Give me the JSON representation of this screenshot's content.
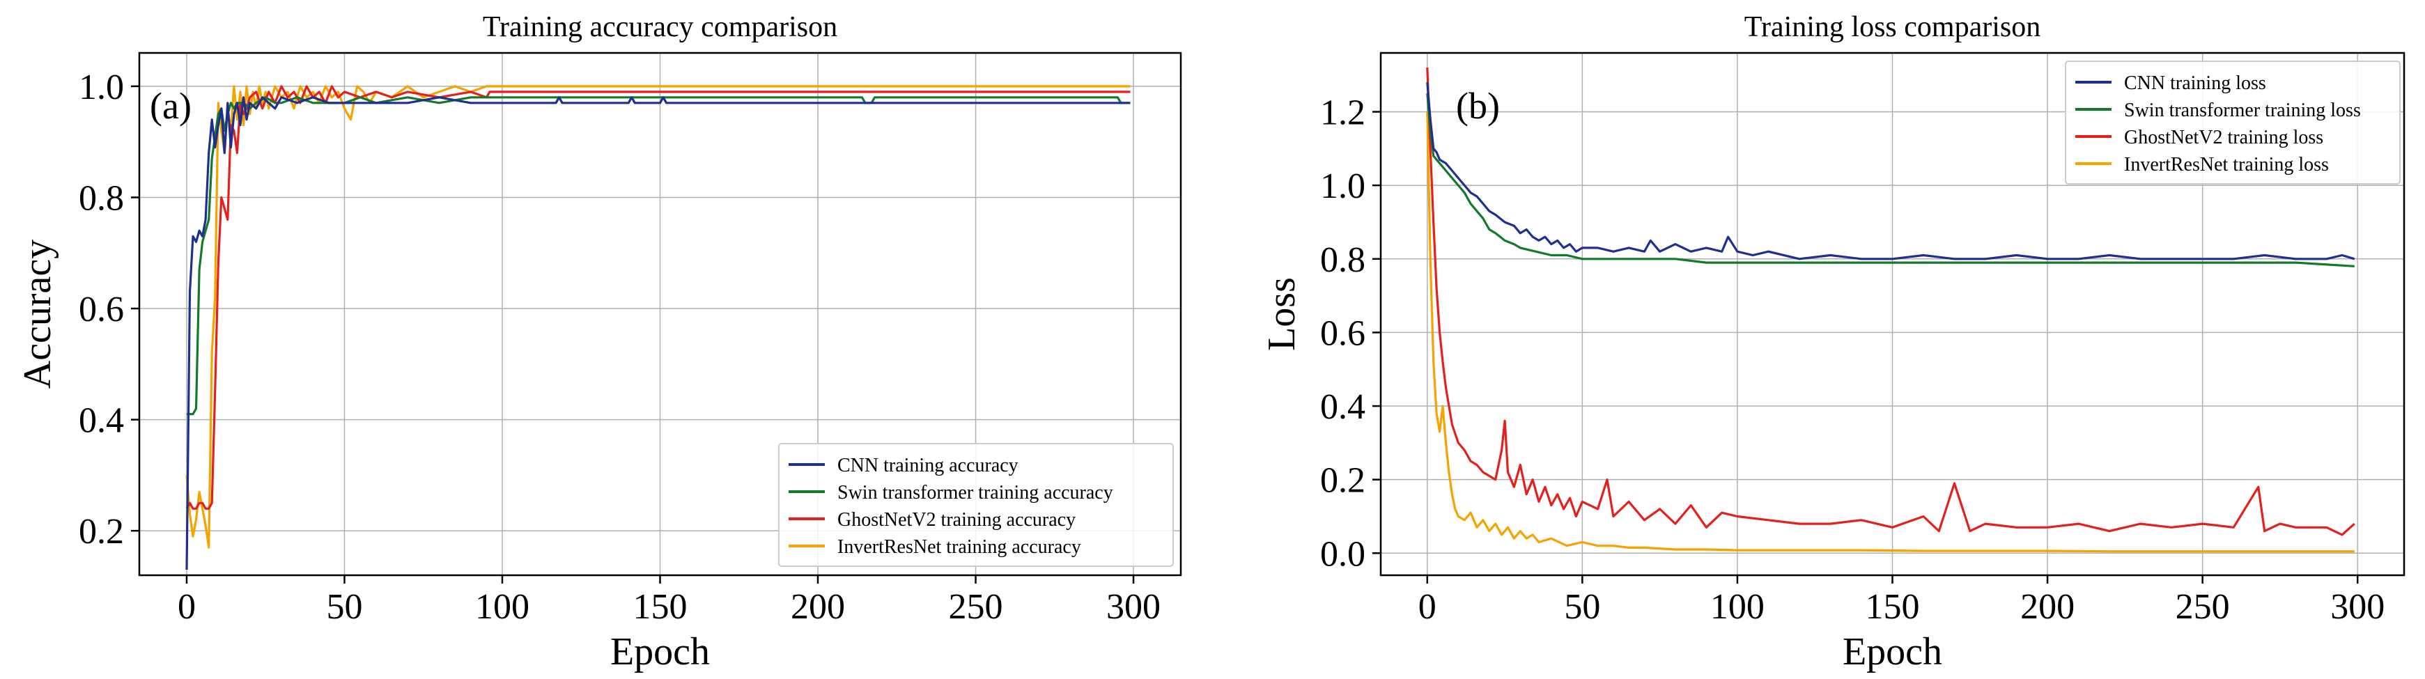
{
  "chart_data": [
    {
      "type": "line",
      "panel_label": "(a)",
      "title": "Training accuracy comparison",
      "xlabel": "Epoch",
      "ylabel": "Accuracy",
      "xlim": [
        -15,
        315
      ],
      "ylim": [
        0.12,
        1.06
      ],
      "xticks": [
        0,
        50,
        100,
        150,
        200,
        250,
        300
      ],
      "yticks": [
        0.2,
        0.4,
        0.6,
        0.8,
        1.0
      ],
      "ytick_format": 1,
      "grid": true,
      "legend_position": "bottom-right",
      "series": [
        {
          "name": "CNN training accuracy",
          "color": "#1f2f8f",
          "x": [
            0,
            1,
            2,
            3,
            4,
            5,
            6,
            7,
            8,
            9,
            10,
            11,
            12,
            13,
            14,
            15,
            16,
            17,
            18,
            19,
            20,
            22,
            24,
            26,
            28,
            30,
            35,
            40,
            45,
            50,
            55,
            60,
            70,
            80,
            90,
            100,
            110,
            117,
            118,
            119,
            130,
            140,
            141,
            142,
            150,
            151,
            152,
            160,
            200,
            250,
            299
          ],
          "y": [
            0.13,
            0.63,
            0.73,
            0.72,
            0.74,
            0.73,
            0.76,
            0.88,
            0.94,
            0.89,
            0.93,
            0.96,
            0.88,
            0.97,
            0.89,
            0.95,
            0.97,
            0.93,
            0.98,
            0.94,
            0.97,
            0.96,
            0.98,
            0.97,
            0.96,
            0.98,
            0.97,
            0.98,
            0.97,
            0.97,
            0.97,
            0.97,
            0.97,
            0.98,
            0.97,
            0.97,
            0.97,
            0.97,
            0.98,
            0.97,
            0.97,
            0.97,
            0.98,
            0.97,
            0.97,
            0.98,
            0.97,
            0.97,
            0.97,
            0.97,
            0.97
          ]
        },
        {
          "name": "Swin transformer training accuracy",
          "color": "#137a2b",
          "x": [
            0,
            1,
            2,
            3,
            4,
            5,
            6,
            7,
            8,
            9,
            10,
            11,
            12,
            13,
            14,
            15,
            16,
            18,
            20,
            22,
            25,
            28,
            30,
            35,
            40,
            45,
            50,
            55,
            60,
            70,
            80,
            90,
            100,
            120,
            150,
            200,
            214,
            215,
            217,
            218,
            220,
            250,
            295,
            296,
            299
          ],
          "y": [
            0.41,
            0.41,
            0.41,
            0.42,
            0.67,
            0.72,
            0.74,
            0.76,
            0.87,
            0.91,
            0.95,
            0.96,
            0.92,
            0.95,
            0.97,
            0.96,
            0.97,
            0.97,
            0.96,
            0.97,
            0.98,
            0.97,
            0.97,
            0.98,
            0.97,
            0.97,
            0.97,
            0.98,
            0.97,
            0.98,
            0.97,
            0.98,
            0.98,
            0.98,
            0.98,
            0.98,
            0.98,
            0.97,
            0.97,
            0.98,
            0.98,
            0.98,
            0.98,
            0.97,
            0.97
          ]
        },
        {
          "name": "GhostNetV2 training accuracy",
          "color": "#e3201b",
          "x": [
            0,
            1,
            2,
            3,
            4,
            5,
            6,
            7,
            8,
            9,
            10,
            11,
            12,
            13,
            14,
            15,
            16,
            17,
            18,
            19,
            20,
            22,
            24,
            26,
            28,
            30,
            32,
            34,
            36,
            38,
            40,
            42,
            44,
            46,
            48,
            50,
            55,
            60,
            65,
            70,
            80,
            90,
            95,
            96,
            97,
            100,
            150,
            200,
            250,
            299
          ],
          "y": [
            0.24,
            0.25,
            0.24,
            0.24,
            0.25,
            0.25,
            0.24,
            0.24,
            0.25,
            0.45,
            0.68,
            0.8,
            0.78,
            0.76,
            0.93,
            0.92,
            0.88,
            0.97,
            0.95,
            0.96,
            0.98,
            0.99,
            0.96,
            0.99,
            0.97,
            1.0,
            0.98,
            0.99,
            0.97,
            1.0,
            0.98,
            0.99,
            0.97,
            1.0,
            0.98,
            0.99,
            0.98,
            0.99,
            0.98,
            0.99,
            0.98,
            0.99,
            0.98,
            0.99,
            0.99,
            0.99,
            0.99,
            0.99,
            0.99,
            0.99
          ]
        },
        {
          "name": "InvertResNet training accuracy",
          "color": "#f5a300",
          "x": [
            0,
            1,
            2,
            3,
            4,
            5,
            6,
            7,
            8,
            9,
            10,
            11,
            12,
            13,
            14,
            15,
            16,
            17,
            18,
            19,
            20,
            21,
            22,
            23,
            24,
            25,
            26,
            28,
            30,
            32,
            34,
            36,
            38,
            40,
            42,
            44,
            46,
            48,
            50,
            52,
            54,
            56,
            58,
            60,
            65,
            70,
            75,
            80,
            85,
            90,
            95,
            100,
            150,
            200,
            250,
            299
          ],
          "y": [
            0.3,
            0.23,
            0.19,
            0.22,
            0.27,
            0.24,
            0.21,
            0.17,
            0.52,
            0.62,
            0.97,
            0.92,
            0.88,
            0.96,
            0.92,
            1.0,
            0.94,
            0.99,
            0.93,
            1.0,
            0.95,
            0.99,
            0.96,
            1.0,
            0.97,
            0.99,
            0.96,
            1.0,
            0.98,
            0.99,
            0.96,
            1.0,
            0.98,
            0.99,
            0.97,
            1.0,
            0.98,
            0.99,
            0.96,
            0.94,
            1.0,
            0.99,
            0.97,
            0.99,
            0.98,
            1.0,
            0.98,
            0.99,
            1.0,
            0.99,
            1.0,
            1.0,
            1.0,
            1.0,
            1.0,
            1.0
          ]
        }
      ]
    },
    {
      "type": "line",
      "panel_label": "(b)",
      "title": "Training loss comparison",
      "xlabel": "Epoch",
      "ylabel": "Loss",
      "xlim": [
        -15,
        315
      ],
      "ylim": [
        -0.06,
        1.36
      ],
      "xticks": [
        0,
        50,
        100,
        150,
        200,
        250,
        300
      ],
      "yticks": [
        0.0,
        0.2,
        0.4,
        0.6,
        0.8,
        1.0,
        1.2
      ],
      "ytick_format": 1,
      "grid": true,
      "legend_position": "top-right",
      "series": [
        {
          "name": "CNN training loss",
          "color": "#1f2f8f",
          "x": [
            0,
            1,
            2,
            3,
            4,
            6,
            8,
            10,
            12,
            14,
            16,
            18,
            20,
            22,
            25,
            28,
            30,
            32,
            34,
            36,
            38,
            40,
            42,
            44,
            46,
            48,
            50,
            55,
            60,
            65,
            70,
            72,
            75,
            80,
            85,
            90,
            95,
            97,
            100,
            105,
            110,
            120,
            130,
            140,
            150,
            160,
            170,
            180,
            190,
            200,
            210,
            220,
            230,
            240,
            250,
            260,
            270,
            280,
            290,
            295,
            299
          ],
          "y": [
            1.28,
            1.18,
            1.1,
            1.09,
            1.07,
            1.06,
            1.04,
            1.02,
            1.0,
            0.98,
            0.97,
            0.95,
            0.93,
            0.92,
            0.9,
            0.89,
            0.87,
            0.88,
            0.86,
            0.85,
            0.86,
            0.84,
            0.85,
            0.83,
            0.84,
            0.82,
            0.83,
            0.83,
            0.82,
            0.83,
            0.82,
            0.85,
            0.82,
            0.84,
            0.82,
            0.83,
            0.82,
            0.86,
            0.82,
            0.81,
            0.82,
            0.8,
            0.81,
            0.8,
            0.8,
            0.81,
            0.8,
            0.8,
            0.81,
            0.8,
            0.8,
            0.81,
            0.8,
            0.8,
            0.8,
            0.8,
            0.81,
            0.8,
            0.8,
            0.81,
            0.8
          ]
        },
        {
          "name": "Swin transformer training loss",
          "color": "#137a2b",
          "x": [
            0,
            1,
            2,
            3,
            4,
            6,
            8,
            10,
            12,
            14,
            16,
            18,
            20,
            22,
            25,
            28,
            30,
            35,
            40,
            45,
            50,
            55,
            60,
            70,
            80,
            90,
            100,
            120,
            140,
            160,
            180,
            200,
            220,
            240,
            260,
            280,
            299
          ],
          "y": [
            1.25,
            1.15,
            1.08,
            1.07,
            1.06,
            1.04,
            1.02,
            1.0,
            0.98,
            0.95,
            0.93,
            0.91,
            0.88,
            0.87,
            0.85,
            0.84,
            0.83,
            0.82,
            0.81,
            0.81,
            0.8,
            0.8,
            0.8,
            0.8,
            0.8,
            0.79,
            0.79,
            0.79,
            0.79,
            0.79,
            0.79,
            0.79,
            0.79,
            0.79,
            0.79,
            0.79,
            0.78
          ]
        },
        {
          "name": "GhostNetV2 training loss",
          "color": "#e3201b",
          "x": [
            0,
            1,
            2,
            3,
            4,
            5,
            6,
            7,
            8,
            10,
            12,
            14,
            16,
            18,
            20,
            22,
            24,
            25,
            26,
            28,
            30,
            32,
            34,
            36,
            38,
            40,
            42,
            44,
            46,
            48,
            50,
            55,
            58,
            60,
            65,
            70,
            75,
            80,
            85,
            90,
            95,
            100,
            110,
            120,
            130,
            140,
            150,
            160,
            165,
            170,
            175,
            180,
            190,
            200,
            210,
            220,
            230,
            240,
            250,
            260,
            268,
            270,
            275,
            280,
            290,
            295,
            299
          ],
          "y": [
            1.32,
            1.1,
            0.9,
            0.72,
            0.6,
            0.52,
            0.45,
            0.4,
            0.35,
            0.3,
            0.28,
            0.25,
            0.24,
            0.22,
            0.21,
            0.2,
            0.28,
            0.36,
            0.22,
            0.18,
            0.24,
            0.16,
            0.2,
            0.14,
            0.18,
            0.13,
            0.16,
            0.12,
            0.15,
            0.1,
            0.14,
            0.12,
            0.2,
            0.1,
            0.14,
            0.09,
            0.12,
            0.08,
            0.13,
            0.07,
            0.11,
            0.1,
            0.09,
            0.08,
            0.08,
            0.09,
            0.07,
            0.1,
            0.06,
            0.19,
            0.06,
            0.08,
            0.07,
            0.07,
            0.08,
            0.06,
            0.08,
            0.07,
            0.08,
            0.07,
            0.18,
            0.06,
            0.08,
            0.07,
            0.07,
            0.05,
            0.08
          ]
        },
        {
          "name": "InvertResNet training loss",
          "color": "#f5a300",
          "x": [
            0,
            1,
            2,
            3,
            4,
            5,
            6,
            7,
            8,
            9,
            10,
            12,
            14,
            16,
            18,
            20,
            22,
            24,
            26,
            28,
            30,
            32,
            34,
            36,
            40,
            45,
            50,
            55,
            60,
            65,
            70,
            80,
            90,
            100,
            120,
            140,
            150,
            160,
            180,
            200,
            220,
            240,
            260,
            280,
            299
          ],
          "y": [
            1.2,
            0.8,
            0.52,
            0.38,
            0.33,
            0.4,
            0.3,
            0.22,
            0.16,
            0.12,
            0.1,
            0.09,
            0.11,
            0.07,
            0.09,
            0.06,
            0.08,
            0.05,
            0.07,
            0.04,
            0.06,
            0.04,
            0.05,
            0.03,
            0.04,
            0.02,
            0.03,
            0.02,
            0.02,
            0.015,
            0.015,
            0.01,
            0.01,
            0.008,
            0.008,
            0.008,
            0.007,
            0.006,
            0.006,
            0.006,
            0.005,
            0.005,
            0.005,
            0.005,
            0.005
          ]
        }
      ]
    }
  ]
}
